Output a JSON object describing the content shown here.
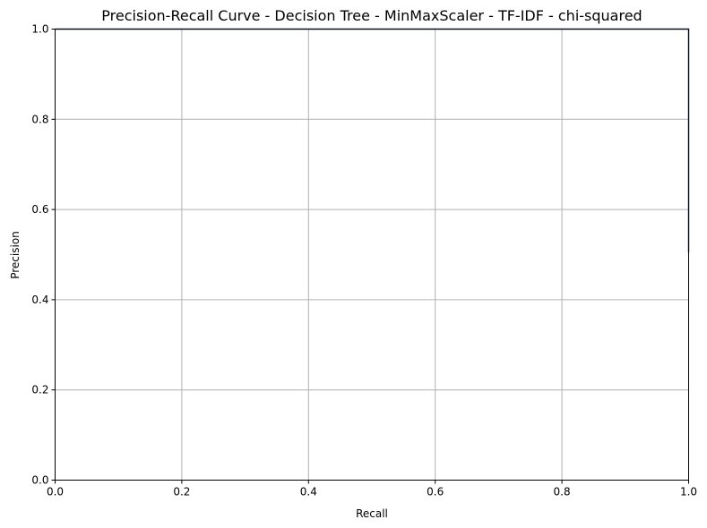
{
  "chart_data": {
    "type": "line",
    "title": "Precision-Recall Curve - Decision Tree - MinMaxScaler - TF-IDF - chi-squared",
    "xlabel": "Recall",
    "ylabel": "Precision",
    "xlim": [
      0.0,
      1.0
    ],
    "ylim": [
      0.0,
      1.0
    ],
    "xticks": [
      "0.0",
      "0.2",
      "0.4",
      "0.6",
      "0.8",
      "1.0"
    ],
    "yticks": [
      "0.0",
      "0.2",
      "0.4",
      "0.6",
      "0.8",
      "1.0"
    ],
    "grid": true,
    "series": [
      {
        "color": "#1f3a6e",
        "x": [
          0.0,
          1.0,
          1.0
        ],
        "y": [
          1.0,
          1.0,
          0.505
        ]
      }
    ]
  }
}
